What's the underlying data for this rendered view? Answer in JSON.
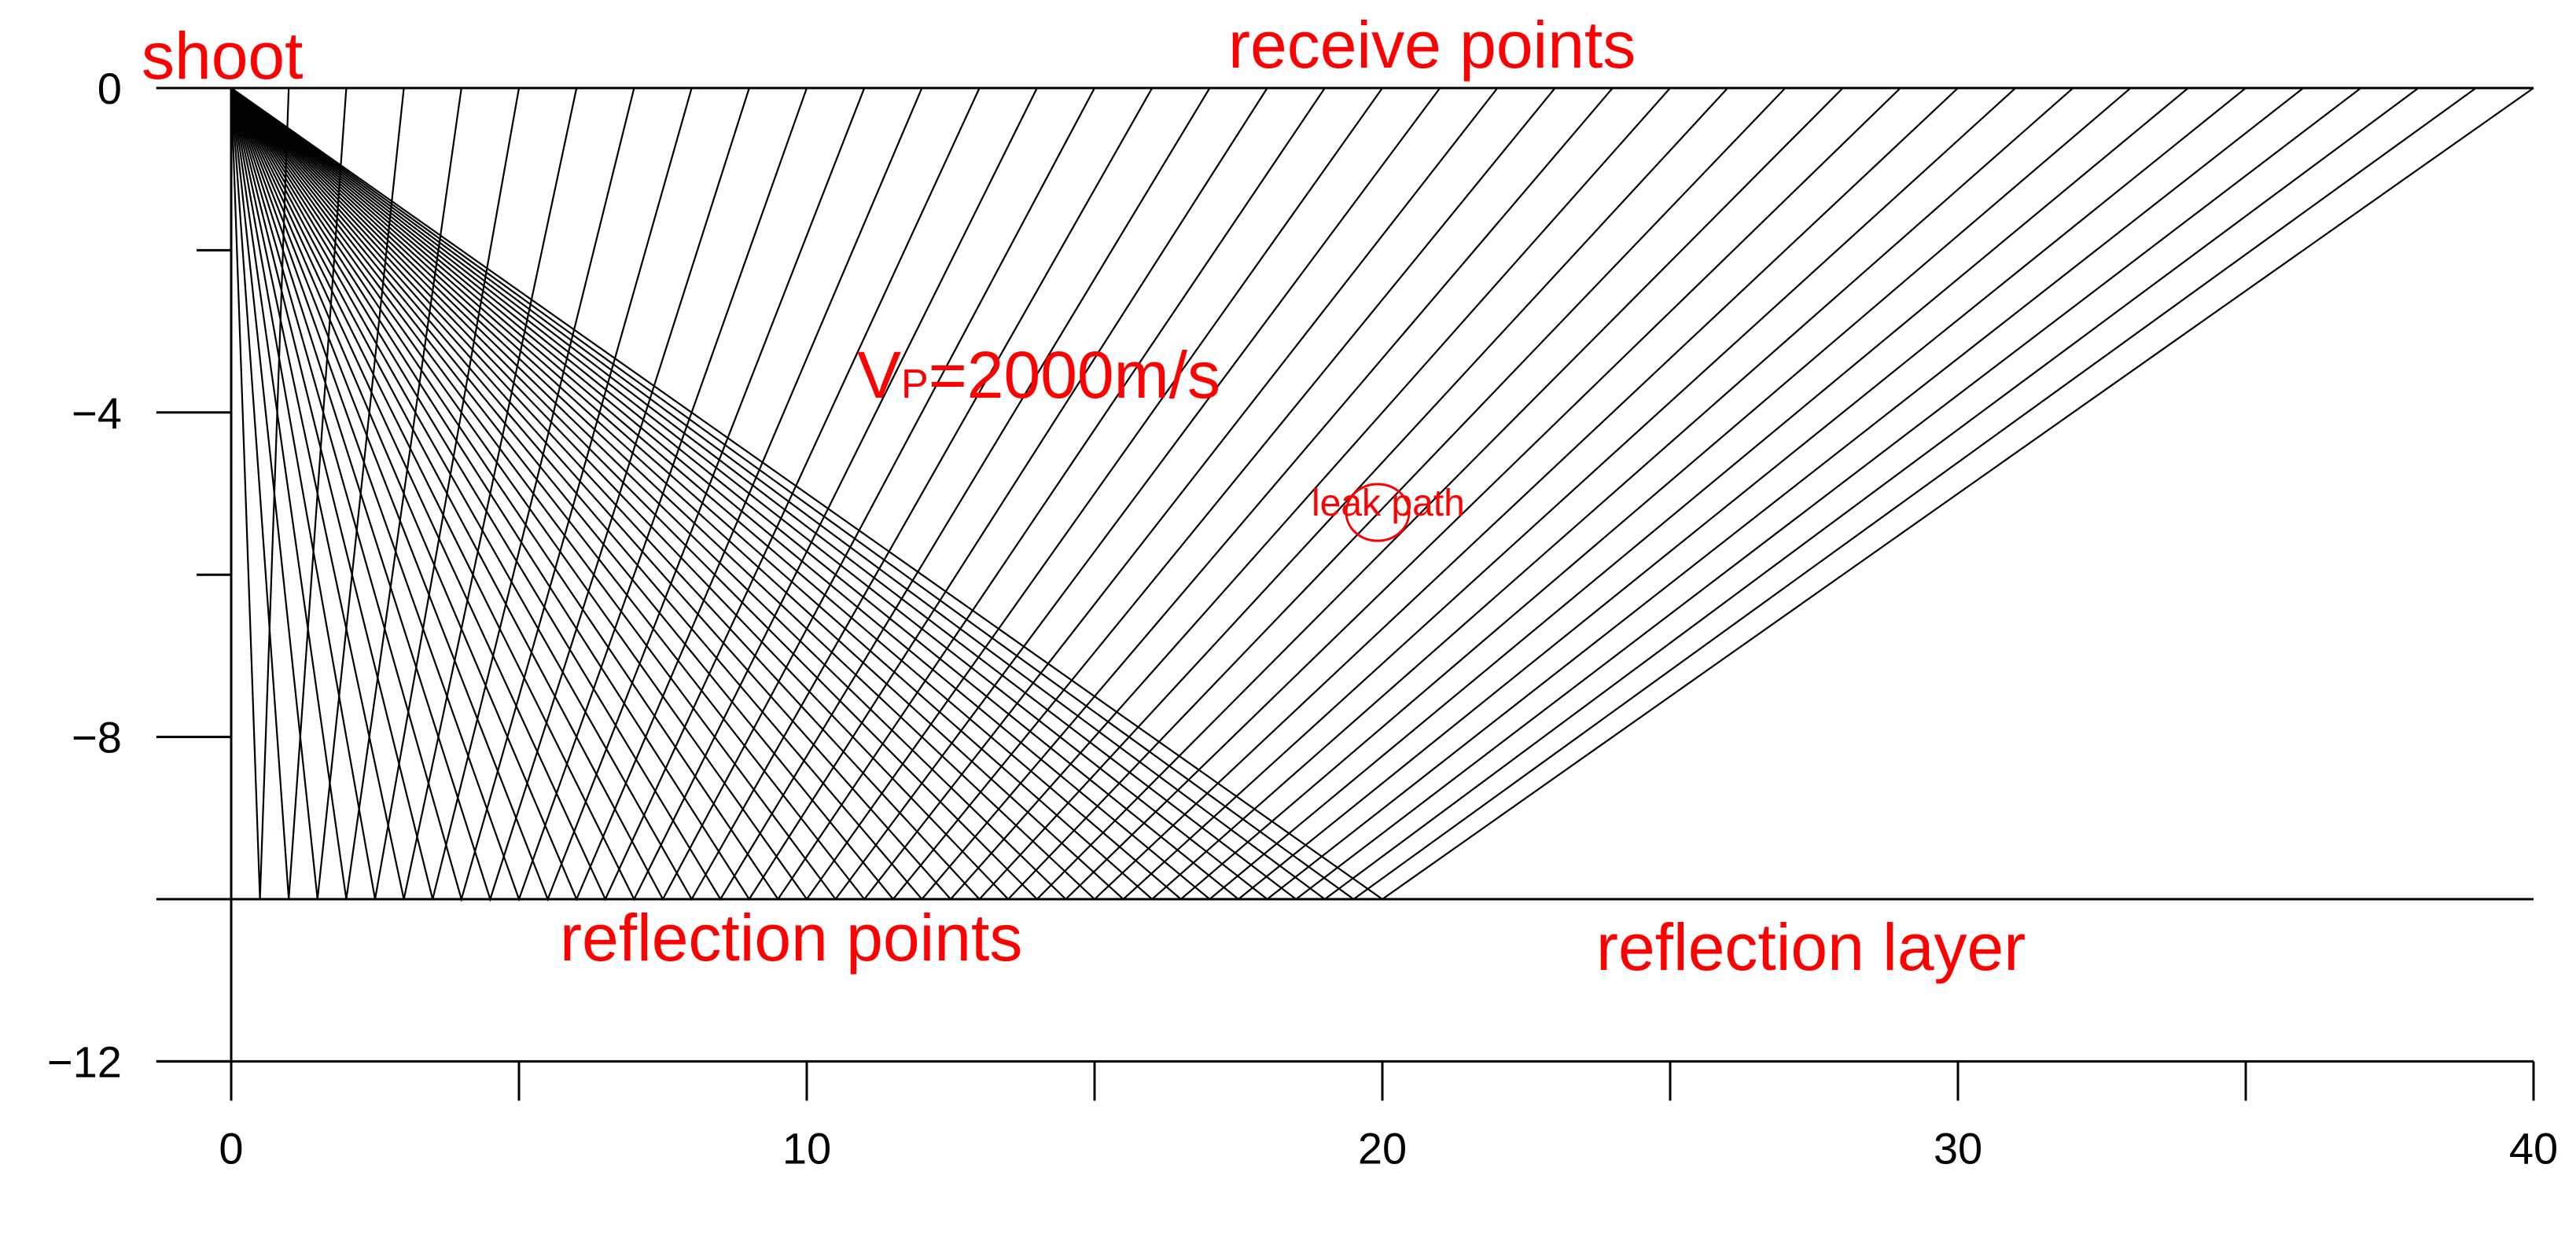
{
  "diagram": {
    "x_axis": {
      "range": [
        0,
        40
      ],
      "ticks": [
        0,
        10,
        20,
        30,
        40
      ],
      "minor_ticks": [
        5,
        15,
        25,
        35
      ]
    },
    "y_axis": {
      "range": [
        -12,
        0
      ],
      "ticks": [
        0,
        -4,
        -8,
        -12
      ],
      "minor_ticks": [
        -2,
        -6,
        -10
      ]
    },
    "tick_labels": {
      "x": [
        "0",
        "10",
        "20",
        "30",
        "40"
      ],
      "y": [
        "0",
        "−4",
        "−8",
        "−12"
      ]
    },
    "shot_point": {
      "x": 0,
      "y": 0
    },
    "reflector_depth": -10,
    "receiver_spacing": 1,
    "receiver_count": 40,
    "colors": {
      "rays": "#000000",
      "annotations": "#ff0000",
      "axes": "#000000"
    },
    "labels": {
      "shoot": "shoot",
      "receive_points": "receive points",
      "velocity_main": "V",
      "velocity_sub": "P",
      "velocity_value": "=2000m/s",
      "leak_path": "leak path",
      "reflection_points": "reflection points",
      "reflection_layer": "reflection layer"
    }
  }
}
